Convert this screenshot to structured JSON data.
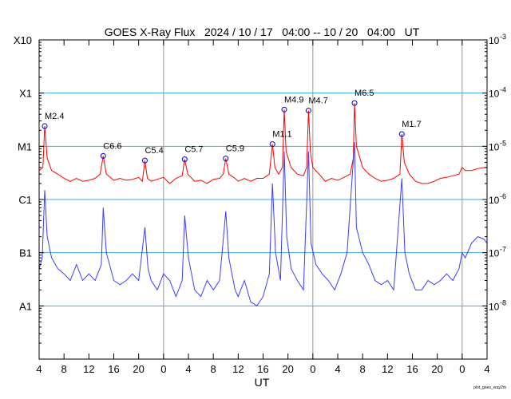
{
  "chart_data": {
    "type": "line",
    "title": "GOES X-Ray Flux   2024 / 10 / 17   04:00 -- 10 / 20   04:00   UT",
    "xlabel": "UT",
    "credit": "plot_goes_xray2m",
    "x_unit": "hours since 2024-10-17 04:00",
    "xlim": [
      0,
      72
    ],
    "ylim": [
      1e-09,
      0.001
    ],
    "yscale": "log",
    "x_tick_labels": [
      "4",
      "8",
      "12",
      "16",
      "20",
      "0",
      "4",
      "8",
      "12",
      "16",
      "20",
      "0",
      "4",
      "8",
      "12",
      "16",
      "20",
      "0",
      "4"
    ],
    "day_boundaries": [
      20,
      44,
      68
    ],
    "left_axis_labels": [
      {
        "label": "X10",
        "value": 0.001
      },
      {
        "label": "X1",
        "value": 0.0001
      },
      {
        "label": "M1",
        "value": 1e-05
      },
      {
        "label": "C1",
        "value": 1e-06
      },
      {
        "label": "B1",
        "value": 1e-07
      },
      {
        "label": "A1",
        "value": 1e-08
      }
    ],
    "right_axis_labels": [
      {
        "base": "10",
        "exp": "-3",
        "value": 0.001
      },
      {
        "base": "10",
        "exp": "-4",
        "value": 0.0001
      },
      {
        "base": "10",
        "exp": "-5",
        "value": 1e-05
      },
      {
        "base": "10",
        "exp": "-6",
        "value": 1e-06
      },
      {
        "base": "10",
        "exp": "-7",
        "value": 1e-07
      },
      {
        "base": "10",
        "exp": "-8",
        "value": 1e-08
      }
    ],
    "grid_levels": [
      0.0001,
      1e-05,
      1e-06,
      1e-07,
      1e-08
    ],
    "colors": {
      "long": "#ff0000",
      "short": "#3b3bff",
      "grid": "#33aaee",
      "day": "#999999",
      "marker": "#0000cc"
    },
    "series": [
      {
        "name": "long",
        "points": [
          [
            0,
            3.5e-06
          ],
          [
            0.6,
            4e-06
          ],
          [
            0.9,
            2.4e-05
          ],
          [
            1.3,
            6e-06
          ],
          [
            2,
            3.5e-06
          ],
          [
            3,
            3e-06
          ],
          [
            4,
            2.5e-06
          ],
          [
            5,
            2.2e-06
          ],
          [
            6,
            2.5e-06
          ],
          [
            7,
            2.2e-06
          ],
          [
            8,
            2.3e-06
          ],
          [
            9,
            2.5e-06
          ],
          [
            9.8,
            3e-06
          ],
          [
            10.3,
            6.6e-06
          ],
          [
            10.8,
            3e-06
          ],
          [
            12,
            2.3e-06
          ],
          [
            13,
            2.5e-06
          ],
          [
            14,
            2.3e-06
          ],
          [
            15,
            2.4e-06
          ],
          [
            16,
            2.6e-06
          ],
          [
            16.6,
            2.2e-06
          ],
          [
            17,
            5.4e-06
          ],
          [
            17.4,
            2.5e-06
          ],
          [
            18,
            2.2e-06
          ],
          [
            19,
            2.4e-06
          ],
          [
            20,
            2.6e-06
          ],
          [
            21,
            2e-06
          ],
          [
            22,
            2.5e-06
          ],
          [
            23,
            2.8e-06
          ],
          [
            23.4,
            5.7e-06
          ],
          [
            23.9,
            3e-06
          ],
          [
            25,
            2.2e-06
          ],
          [
            26,
            2.3e-06
          ],
          [
            27,
            2e-06
          ],
          [
            28,
            2.4e-06
          ],
          [
            29,
            2.5e-06
          ],
          [
            29.6,
            3e-06
          ],
          [
            30,
            5.9e-06
          ],
          [
            30.5,
            3e-06
          ],
          [
            31.5,
            2.5e-06
          ],
          [
            32,
            2.2e-06
          ],
          [
            33,
            2.5e-06
          ],
          [
            34,
            2.2e-06
          ],
          [
            35,
            2.5e-06
          ],
          [
            36,
            2.5e-06
          ],
          [
            37,
            3e-06
          ],
          [
            37.5,
            1.1e-05
          ],
          [
            37.9,
            4e-06
          ],
          [
            38.5,
            3e-06
          ],
          [
            39.1,
            4e-06
          ],
          [
            39.4,
            4.9e-05
          ],
          [
            39.7,
            8e-06
          ],
          [
            40.5,
            4e-06
          ],
          [
            41.5,
            3e-06
          ],
          [
            42.5,
            2.8e-06
          ],
          [
            43,
            4e-06
          ],
          [
            43.3,
            4.7e-05
          ],
          [
            43.6,
            8e-06
          ],
          [
            44,
            4e-06
          ],
          [
            45,
            3e-06
          ],
          [
            46,
            2.2e-06
          ],
          [
            47,
            2.5e-06
          ],
          [
            48,
            2.3e-06
          ],
          [
            49,
            2.6e-06
          ],
          [
            50,
            3e-06
          ],
          [
            50.5,
            6e-06
          ],
          [
            50.7,
            6.5e-05
          ],
          [
            51,
            1e-05
          ],
          [
            52,
            4e-06
          ],
          [
            53,
            3e-06
          ],
          [
            54,
            2.5e-06
          ],
          [
            55,
            2.2e-06
          ],
          [
            56,
            2.3e-06
          ],
          [
            57,
            2.5e-06
          ],
          [
            58,
            3e-06
          ],
          [
            58.3,
            1.7e-05
          ],
          [
            58.7,
            5e-06
          ],
          [
            59.5,
            3e-06
          ],
          [
            60.5,
            2.2e-06
          ],
          [
            61.5,
            2e-06
          ],
          [
            62.5,
            2e-06
          ],
          [
            63.5,
            2.2e-06
          ],
          [
            64.5,
            2.5e-06
          ],
          [
            65.5,
            2.6e-06
          ],
          [
            66.5,
            2.8e-06
          ],
          [
            67.5,
            3e-06
          ],
          [
            68,
            4e-06
          ],
          [
            68.5,
            3.5e-06
          ],
          [
            69.5,
            3.5e-06
          ],
          [
            70.5,
            3.8e-06
          ],
          [
            71.5,
            4e-06
          ],
          [
            72,
            4e-06
          ]
        ]
      },
      {
        "name": "short",
        "points": [
          [
            0,
            5e-08
          ],
          [
            0.5,
            8e-08
          ],
          [
            0.9,
            1.5e-06
          ],
          [
            1.3,
            2e-07
          ],
          [
            2,
            8e-08
          ],
          [
            3,
            5e-08
          ],
          [
            4,
            4e-08
          ],
          [
            5,
            3e-08
          ],
          [
            6,
            6e-08
          ],
          [
            7,
            3e-08
          ],
          [
            8,
            4e-08
          ],
          [
            9,
            3e-08
          ],
          [
            10,
            6e-08
          ],
          [
            10.3,
            7e-07
          ],
          [
            10.8,
            1e-07
          ],
          [
            12,
            3e-08
          ],
          [
            13,
            2.5e-08
          ],
          [
            14,
            3e-08
          ],
          [
            15,
            4e-08
          ],
          [
            16,
            3e-08
          ],
          [
            17,
            3e-07
          ],
          [
            17.5,
            5e-08
          ],
          [
            18,
            3e-08
          ],
          [
            19,
            2e-08
          ],
          [
            20,
            4e-08
          ],
          [
            21,
            3e-08
          ],
          [
            22,
            1.5e-08
          ],
          [
            23,
            3e-08
          ],
          [
            23.4,
            5e-07
          ],
          [
            24,
            8e-08
          ],
          [
            25,
            2e-08
          ],
          [
            26,
            1.5e-08
          ],
          [
            27,
            3e-08
          ],
          [
            28,
            2e-08
          ],
          [
            29,
            3e-08
          ],
          [
            30,
            6e-07
          ],
          [
            30.5,
            8e-08
          ],
          [
            31.5,
            2e-08
          ],
          [
            32,
            1.5e-08
          ],
          [
            33,
            3e-08
          ],
          [
            34,
            1.2e-08
          ],
          [
            35,
            1e-08
          ],
          [
            36,
            1.5e-08
          ],
          [
            37,
            4e-08
          ],
          [
            37.5,
            2e-06
          ],
          [
            38,
            1e-07
          ],
          [
            38.8,
            3e-08
          ],
          [
            39.4,
            8e-06
          ],
          [
            39.8,
            2e-07
          ],
          [
            40.5,
            5e-08
          ],
          [
            41.5,
            3e-08
          ],
          [
            42.5,
            2e-08
          ],
          [
            43.3,
            8e-06
          ],
          [
            43.7,
            1.5e-07
          ],
          [
            44.5,
            6e-08
          ],
          [
            45.5,
            4e-08
          ],
          [
            46.5,
            3e-08
          ],
          [
            47.5,
            2e-08
          ],
          [
            48.5,
            4e-08
          ],
          [
            49.5,
            1e-07
          ],
          [
            50.7,
            1.2e-05
          ],
          [
            51,
            3e-07
          ],
          [
            52,
            1e-07
          ],
          [
            53,
            6e-08
          ],
          [
            54,
            3e-08
          ],
          [
            55,
            2.5e-08
          ],
          [
            56,
            3e-08
          ],
          [
            57,
            2e-08
          ],
          [
            58.3,
            2.5e-06
          ],
          [
            58.8,
            1e-07
          ],
          [
            59.5,
            4e-08
          ],
          [
            60.5,
            2e-08
          ],
          [
            61.5,
            2e-08
          ],
          [
            62.5,
            3e-08
          ],
          [
            63.5,
            2.5e-08
          ],
          [
            64.5,
            3e-08
          ],
          [
            65.5,
            4e-08
          ],
          [
            66.5,
            3e-08
          ],
          [
            67.5,
            5e-08
          ],
          [
            68,
            1e-07
          ],
          [
            68.5,
            8e-08
          ],
          [
            69.5,
            1.5e-07
          ],
          [
            70.5,
            2e-07
          ],
          [
            71.5,
            1.8e-07
          ],
          [
            72,
            1.5e-07
          ]
        ]
      }
    ],
    "flares": [
      {
        "label": "M2.4",
        "t": 0.9,
        "flux": 2.4e-05
      },
      {
        "label": "C6.6",
        "t": 10.3,
        "flux": 6.6e-06
      },
      {
        "label": "C5.4",
        "t": 17.0,
        "flux": 5.4e-06
      },
      {
        "label": "C5.7",
        "t": 23.4,
        "flux": 5.7e-06
      },
      {
        "label": "C5.9",
        "t": 30.0,
        "flux": 5.9e-06
      },
      {
        "label": "M1.1",
        "t": 37.5,
        "flux": 1.1e-05
      },
      {
        "label": "M4.9",
        "t": 39.4,
        "flux": 4.9e-05
      },
      {
        "label": "M4.7",
        "t": 43.3,
        "flux": 4.7e-05
      },
      {
        "label": "M6.5",
        "t": 50.7,
        "flux": 6.5e-05
      },
      {
        "label": "M1.7",
        "t": 58.3,
        "flux": 1.7e-05
      }
    ]
  }
}
